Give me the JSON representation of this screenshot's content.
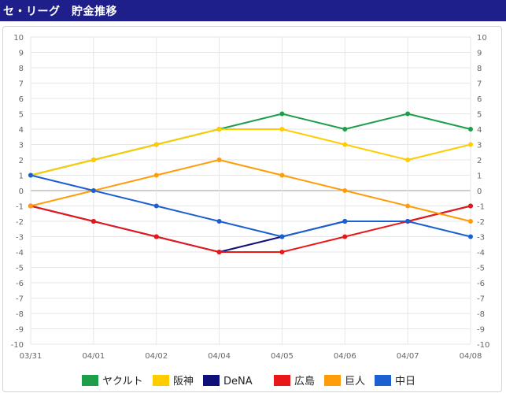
{
  "header": {
    "title": "セ・リーグ　貯金推移"
  },
  "colors": {
    "title_bg": "#1f1f8c",
    "title_text": "#ffffff"
  },
  "chart_data": {
    "type": "line",
    "categories": [
      "03/31",
      "04/01",
      "04/02",
      "04/04",
      "04/05",
      "04/06",
      "04/07",
      "04/08"
    ],
    "ylim": [
      -10,
      10
    ],
    "yticks": [
      10,
      9,
      8,
      7,
      6,
      5,
      4,
      3,
      2,
      1,
      0,
      -1,
      -2,
      -3,
      -4,
      -5,
      -6,
      -7,
      -8,
      -9,
      -10
    ],
    "grid": true,
    "y_axis_both_sides": true,
    "legend_position": "bottom",
    "series": [
      {
        "name": "ヤクルト",
        "color": "#1e9e4a",
        "values": [
          1,
          2,
          3,
          4,
          5,
          4,
          5,
          4
        ]
      },
      {
        "name": "阪神",
        "color": "#ffcc00",
        "values": [
          1,
          2,
          3,
          4,
          4,
          3,
          2,
          3
        ]
      },
      {
        "name": "DeNA",
        "color": "#0f0f7a",
        "values": [
          -1,
          -2,
          -3,
          -4,
          -3,
          -2,
          -2,
          -1
        ]
      },
      {
        "name": "広島",
        "color": "#e81818",
        "values": [
          -1,
          -2,
          -3,
          -4,
          -4,
          -3,
          -2,
          -1
        ]
      },
      {
        "name": "巨人",
        "color": "#ff9c0a",
        "values": [
          -1,
          0,
          1,
          2,
          1,
          0,
          -1,
          -2
        ]
      },
      {
        "name": "中日",
        "color": "#1b5fd1",
        "values": [
          1,
          0,
          -1,
          -2,
          -3,
          -2,
          -2,
          -3
        ]
      }
    ]
  }
}
